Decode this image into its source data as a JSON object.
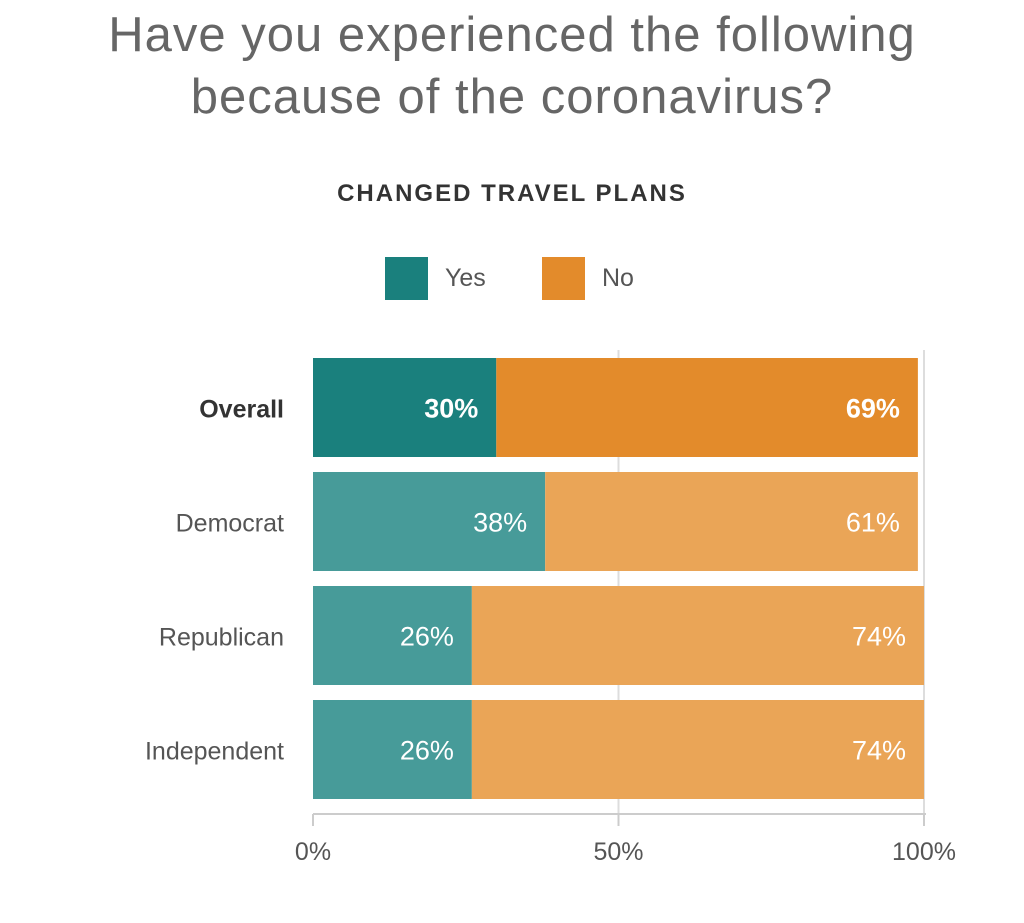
{
  "title_line1": "Have you experienced the following",
  "title_line2": "because of the coronavirus?",
  "subtitle": "CHANGED TRAVEL PLANS",
  "legend": [
    {
      "label": "Yes",
      "color": "#1a807d"
    },
    {
      "label": "No",
      "color": "#e38b2b"
    }
  ],
  "colors": {
    "yes_highlight": "#1a807d",
    "no_highlight": "#e38b2b",
    "yes": "#479b99",
    "no": "#eaa557",
    "grid": "#dddddd",
    "axis": "#cccccc"
  },
  "chart_data": {
    "type": "bar",
    "orientation": "horizontal",
    "stacked": true,
    "title": "Have you experienced the following because of the coronavirus?",
    "subtitle": "CHANGED TRAVEL PLANS",
    "categories": [
      "Overall",
      "Democrat",
      "Republican",
      "Independent"
    ],
    "highlight_category": "Overall",
    "series": [
      {
        "name": "Yes",
        "values": [
          30,
          38,
          26,
          26
        ],
        "labels": [
          "30%",
          "38%",
          "26%",
          "26%"
        ]
      },
      {
        "name": "No",
        "values": [
          69,
          61,
          74,
          74
        ],
        "labels": [
          "69%",
          "61%",
          "74%",
          "74%"
        ]
      }
    ],
    "xlim": [
      0,
      100
    ],
    "xticks": [
      0,
      50,
      100
    ],
    "xtick_labels": [
      "0%",
      "50%",
      "100%"
    ],
    "grid": true,
    "legend_position": "top-center"
  }
}
